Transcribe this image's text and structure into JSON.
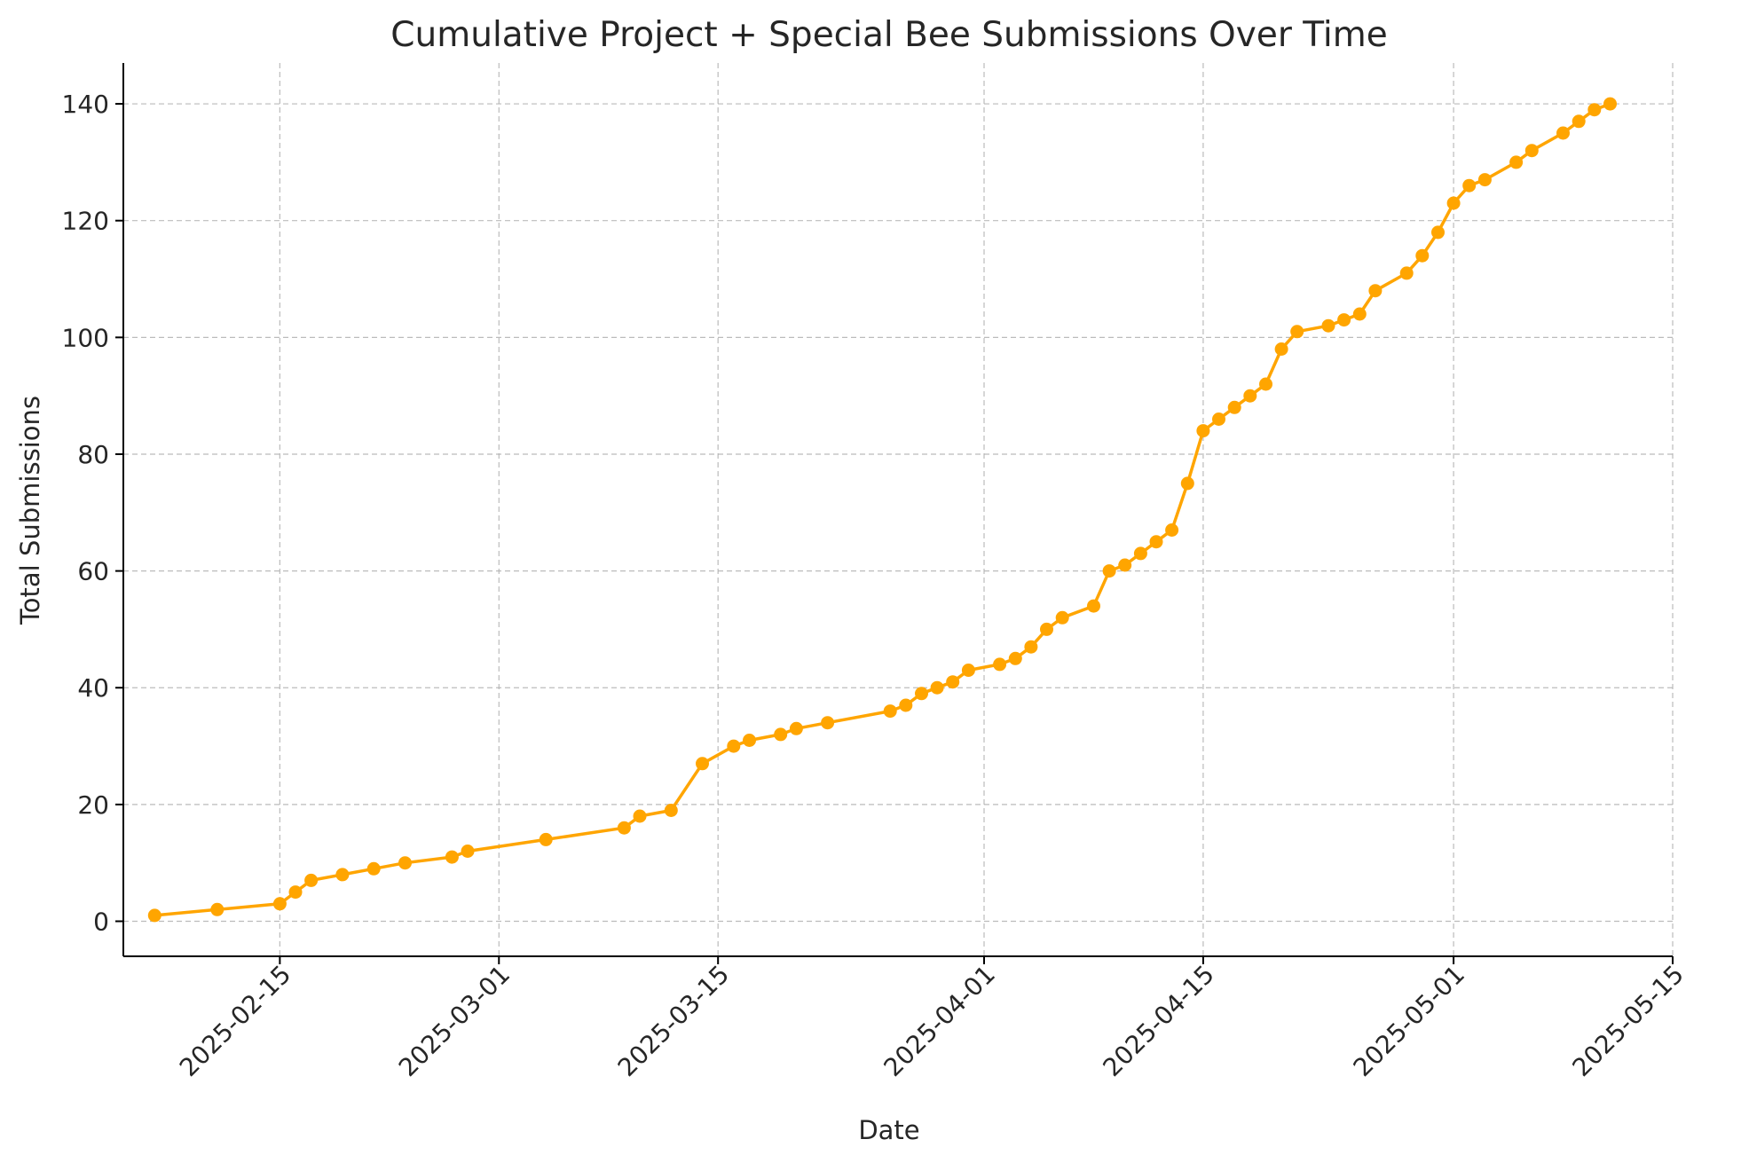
{
  "chart_data": {
    "type": "line",
    "title": "Cumulative Project + Special Bee Submissions Over Time",
    "xlabel": "Date",
    "ylabel": "Total Submissions",
    "x_type": "date",
    "xlim": [
      "2025-02-05",
      "2025-05-15"
    ],
    "ylim": [
      -6,
      147
    ],
    "grid": true,
    "legend": "none",
    "x_ticks": [
      "2025-02-15",
      "2025-03-01",
      "2025-03-15",
      "2025-04-01",
      "2025-04-15",
      "2025-05-01",
      "2025-05-15"
    ],
    "y_ticks": [
      0,
      20,
      40,
      60,
      80,
      100,
      120,
      140
    ],
    "series": [
      {
        "color": "#FFA500",
        "marker": "circle",
        "points": [
          [
            "2025-02-07",
            1
          ],
          [
            "2025-02-11",
            2
          ],
          [
            "2025-02-15",
            3
          ],
          [
            "2025-02-16",
            5
          ],
          [
            "2025-02-17",
            7
          ],
          [
            "2025-02-19",
            8
          ],
          [
            "2025-02-21",
            9
          ],
          [
            "2025-02-23",
            10
          ],
          [
            "2025-02-26",
            11
          ],
          [
            "2025-02-27",
            12
          ],
          [
            "2025-03-04",
            14
          ],
          [
            "2025-03-09",
            16
          ],
          [
            "2025-03-10",
            18
          ],
          [
            "2025-03-12",
            19
          ],
          [
            "2025-03-14",
            27
          ],
          [
            "2025-03-16",
            30
          ],
          [
            "2025-03-17",
            31
          ],
          [
            "2025-03-19",
            32
          ],
          [
            "2025-03-20",
            33
          ],
          [
            "2025-03-22",
            34
          ],
          [
            "2025-03-26",
            36
          ],
          [
            "2025-03-27",
            37
          ],
          [
            "2025-03-28",
            39
          ],
          [
            "2025-03-29",
            40
          ],
          [
            "2025-03-30",
            41
          ],
          [
            "2025-03-31",
            43
          ],
          [
            "2025-04-02",
            44
          ],
          [
            "2025-04-03",
            45
          ],
          [
            "2025-04-04",
            47
          ],
          [
            "2025-04-05",
            50
          ],
          [
            "2025-04-06",
            52
          ],
          [
            "2025-04-08",
            54
          ],
          [
            "2025-04-09",
            60
          ],
          [
            "2025-04-10",
            61
          ],
          [
            "2025-04-11",
            63
          ],
          [
            "2025-04-12",
            65
          ],
          [
            "2025-04-13",
            67
          ],
          [
            "2025-04-14",
            75
          ],
          [
            "2025-04-15",
            84
          ],
          [
            "2025-04-16",
            86
          ],
          [
            "2025-04-17",
            88
          ],
          [
            "2025-04-18",
            90
          ],
          [
            "2025-04-19",
            92
          ],
          [
            "2025-04-20",
            98
          ],
          [
            "2025-04-21",
            101
          ],
          [
            "2025-04-23",
            102
          ],
          [
            "2025-04-24",
            103
          ],
          [
            "2025-04-25",
            104
          ],
          [
            "2025-04-26",
            108
          ],
          [
            "2025-04-28",
            111
          ],
          [
            "2025-04-29",
            114
          ],
          [
            "2025-04-30",
            118
          ],
          [
            "2025-05-01",
            123
          ],
          [
            "2025-05-02",
            126
          ],
          [
            "2025-05-03",
            127
          ],
          [
            "2025-05-05",
            130
          ],
          [
            "2025-05-06",
            132
          ],
          [
            "2025-05-08",
            135
          ],
          [
            "2025-05-09",
            137
          ],
          [
            "2025-05-10",
            139
          ],
          [
            "2025-05-11",
            140
          ]
        ]
      }
    ]
  }
}
